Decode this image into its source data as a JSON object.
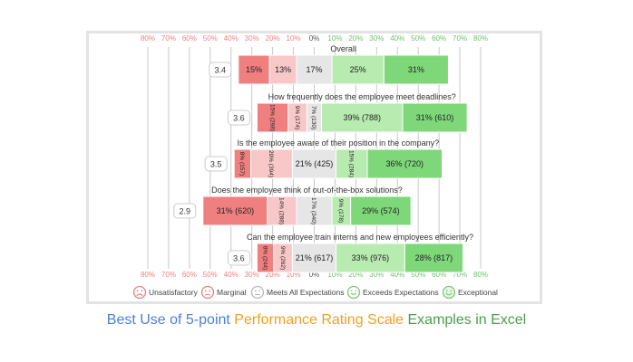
{
  "chart_data": {
    "type": "bar",
    "subtype": "diverging-stacked",
    "title": "",
    "xlabel": "",
    "ylabel": "",
    "xlim": [
      -80,
      80
    ],
    "x_ticks": [
      -80,
      -70,
      -60,
      -50,
      -40,
      -30,
      -20,
      -10,
      0,
      10,
      20,
      30,
      40,
      50,
      60,
      70,
      80
    ],
    "x_tick_labels": [
      "80%",
      "70%",
      "60%",
      "50%",
      "40%",
      "30%",
      "20%",
      "10%",
      "0%",
      "10%",
      "20%",
      "30%",
      "40%",
      "50%",
      "60%",
      "70%",
      "80%"
    ],
    "grid": true,
    "legend_position": "bottom",
    "legend": [
      {
        "name": "Unsatisfactory",
        "color": "#f08080",
        "icon": "very-sad-face-icon"
      },
      {
        "name": "Marginal",
        "color": "#f8c8c8",
        "icon": "sad-face-icon"
      },
      {
        "name": "Meets All Expectations",
        "color": "#e6e6e6",
        "icon": "neutral-face-icon"
      },
      {
        "name": "Exceeds Expectations",
        "color": "#b8ebb0",
        "icon": "smile-face-icon"
      },
      {
        "name": "Exceptional",
        "color": "#7ed87a",
        "icon": "happy-face-icon"
      }
    ],
    "questions": [
      {
        "title": "Overall",
        "score": "3.4",
        "values": [
          15,
          13,
          17,
          25,
          31
        ],
        "labels": [
          "15%",
          "13%",
          "17%",
          "25%",
          "31%"
        ]
      },
      {
        "title": "How frequently does the employee meet deadlines?",
        "score": "3.6",
        "values": [
          15,
          9,
          7,
          39,
          31
        ],
        "labels": [
          "15% (298)",
          "9% (174)",
          "7% (130)",
          "39% (788)",
          "31% (610)"
        ]
      },
      {
        "title": "Is the employee aware of their position in the company?",
        "score": "3.5",
        "values": [
          8,
          20,
          21,
          15,
          36
        ],
        "labels": [
          "8% (157)",
          "20% (394)",
          "21% (425)",
          "15% (284)",
          "36% (720)"
        ]
      },
      {
        "title": "Does the employee think of out-of-the-box solutions?",
        "score": "2.9",
        "values": [
          31,
          14,
          17,
          9,
          29
        ],
        "labels": [
          "31% (620)",
          "14% (288)",
          "17% (340)",
          "9% (178)",
          "29% (574)"
        ]
      },
      {
        "title": "Can the employee train interns and new employees efficiently?",
        "score": "3.6",
        "values": [
          8,
          9,
          21,
          33,
          28
        ],
        "labels": [
          "8% (244)",
          "9% (262)",
          "21% (617)",
          "33% (976)",
          "28% (817)"
        ]
      }
    ]
  },
  "caption": {
    "parts": [
      {
        "text": "Best Use of 5-point ",
        "color": "#4a7fd8"
      },
      {
        "text": "Performance Rating Scale ",
        "color": "#f0a020"
      },
      {
        "text": "Examples in Excel",
        "color": "#4aa04a"
      }
    ]
  },
  "colors": {
    "neg_tick": "#f08080",
    "zero_tick": "#555555",
    "pos_tick": "#6cc46c",
    "gridline": "#c8c8c8",
    "label_text": "#222222",
    "frame_border": "#e3e3e3"
  }
}
